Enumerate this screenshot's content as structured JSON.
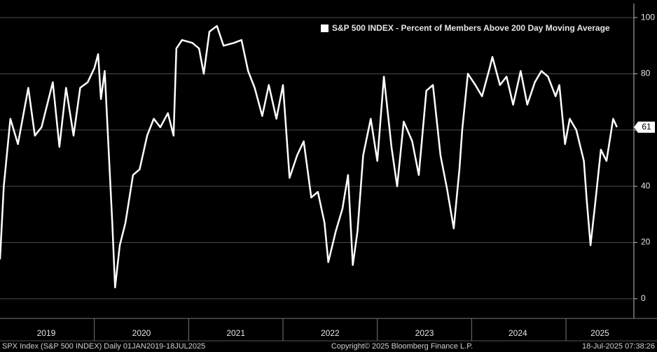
{
  "chart_data": {
    "type": "line",
    "series": [
      {
        "name": "S&P 500 INDEX - Percent of Members Above 200 Day Moving Average",
        "color": "#ffffff",
        "x": [
          2019.0,
          2019.04,
          2019.11,
          2019.19,
          2019.3,
          2019.37,
          2019.44,
          2019.56,
          2019.63,
          2019.7,
          2019.78,
          2019.85,
          2019.93,
          2020.0,
          2020.04,
          2020.07,
          2020.11,
          2020.15,
          2020.19,
          2020.22,
          2020.27,
          2020.33,
          2020.41,
          2020.48,
          2020.56,
          2020.63,
          2020.7,
          2020.78,
          2020.84,
          2020.87,
          2020.93,
          2021.04,
          2021.11,
          2021.16,
          2021.22,
          2021.3,
          2021.37,
          2021.48,
          2021.56,
          2021.63,
          2021.7,
          2021.78,
          2021.85,
          2021.93,
          2022.0,
          2022.07,
          2022.15,
          2022.22,
          2022.3,
          2022.37,
          2022.44,
          2022.48,
          2022.56,
          2022.63,
          2022.69,
          2022.74,
          2022.79,
          2022.85,
          2022.93,
          2023.0,
          2023.07,
          2023.15,
          2023.21,
          2023.28,
          2023.37,
          2023.44,
          2023.52,
          2023.59,
          2023.67,
          2023.74,
          2023.81,
          2023.87,
          2023.9,
          2023.96,
          2024.04,
          2024.11,
          2024.19,
          2024.22,
          2024.3,
          2024.37,
          2024.44,
          2024.52,
          2024.59,
          2024.67,
          2024.74,
          2024.81,
          2024.89,
          2024.93,
          2024.99,
          2025.04,
          2025.11,
          2025.19,
          2025.22,
          2025.26,
          2025.31,
          2025.37,
          2025.43,
          2025.5,
          2025.54
        ],
        "values": [
          14,
          40,
          64,
          55,
          75,
          58,
          61,
          77,
          54,
          75,
          58,
          75,
          77,
          82,
          87,
          71,
          81,
          54,
          27,
          4,
          19,
          27,
          44,
          46,
          58,
          64,
          61,
          66,
          58,
          89,
          92,
          91,
          89,
          80,
          95,
          97,
          90,
          91,
          92,
          81,
          75,
          65,
          76,
          64,
          76,
          43,
          51,
          56,
          36,
          38,
          27,
          13,
          24,
          32,
          44,
          12,
          24,
          51,
          64,
          49,
          79,
          54,
          40,
          63,
          56,
          44,
          74,
          76,
          51,
          39,
          25,
          46,
          60,
          80,
          76,
          72,
          82,
          86,
          76,
          79,
          69,
          81,
          69,
          77,
          81,
          79,
          72,
          76,
          55,
          64,
          60,
          49,
          35,
          19,
          34,
          53,
          49,
          64,
          61
        ]
      }
    ],
    "xlim": [
      2019.0,
      2025.72
    ],
    "xticks": [
      {
        "value": 2019.49,
        "label": "2019"
      },
      {
        "value": 2020.5,
        "label": "2020"
      },
      {
        "value": 2021.5,
        "label": "2021"
      },
      {
        "value": 2022.5,
        "label": "2022"
      },
      {
        "value": 2023.5,
        "label": "2023"
      },
      {
        "value": 2024.49,
        "label": "2024"
      },
      {
        "value": 2025.36,
        "label": "2025"
      }
    ],
    "year_separators": [
      2020,
      2021,
      2022,
      2023,
      2024,
      2025
    ],
    "ylim": [
      -7,
      105
    ],
    "yticks": [
      0,
      20,
      40,
      60,
      80,
      100
    ],
    "grid": true,
    "legend": "top-right",
    "footer_left": "SPX Index (S&P 500 INDEX)  Daily 01JAN2019-18JUL2025",
    "footer_center": "Copyright© 2025 Bloomberg Finance L.P.",
    "footer_right": "18-Jul-2025 07:38:26"
  }
}
